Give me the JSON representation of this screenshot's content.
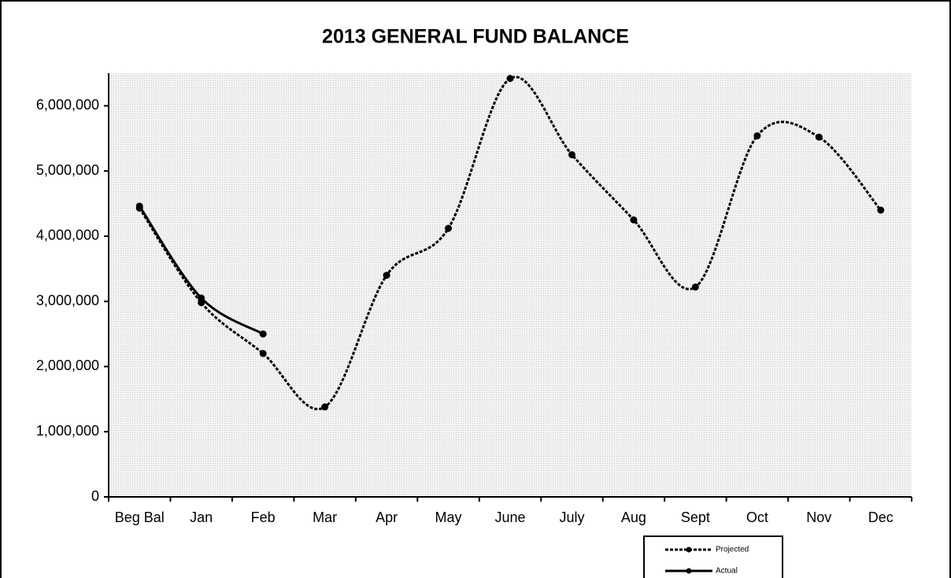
{
  "chart_data": {
    "type": "line",
    "title": "2013 GENERAL FUND BALANCE",
    "categories": [
      "Beg Bal",
      "Jan",
      "Feb",
      "Mar",
      "Apr",
      "May",
      "June",
      "July",
      "Aug",
      "Sept",
      "Oct",
      "Nov",
      "Dec"
    ],
    "series": [
      {
        "name": "Projected",
        "color": "#000000",
        "line_style": "dashed",
        "values": [
          4430000,
          2980000,
          2200000,
          1380000,
          3400000,
          4120000,
          6420000,
          5250000,
          4250000,
          3220000,
          5540000,
          5520000,
          4400000
        ]
      },
      {
        "name": "Actual",
        "color": "#000000",
        "line_style": "solid",
        "values": [
          4460000,
          3050000,
          2500000,
          null,
          null,
          null,
          null,
          null,
          null,
          null,
          null,
          null,
          null
        ]
      }
    ],
    "ylim": [
      0,
      6500000
    ],
    "yticks": [
      0,
      {
        "value": 1000000,
        "label": "1,000,000"
      },
      {
        "value": 2000000,
        "label": "2,000,000"
      },
      {
        "value": 3000000,
        "label": "3,000,000"
      },
      {
        "value": 4000000,
        "label": "4,000,000"
      },
      {
        "value": 5000000,
        "label": "5,000,000"
      },
      {
        "value": 6000000,
        "label": "6,000,000"
      }
    ],
    "smooth": true
  }
}
